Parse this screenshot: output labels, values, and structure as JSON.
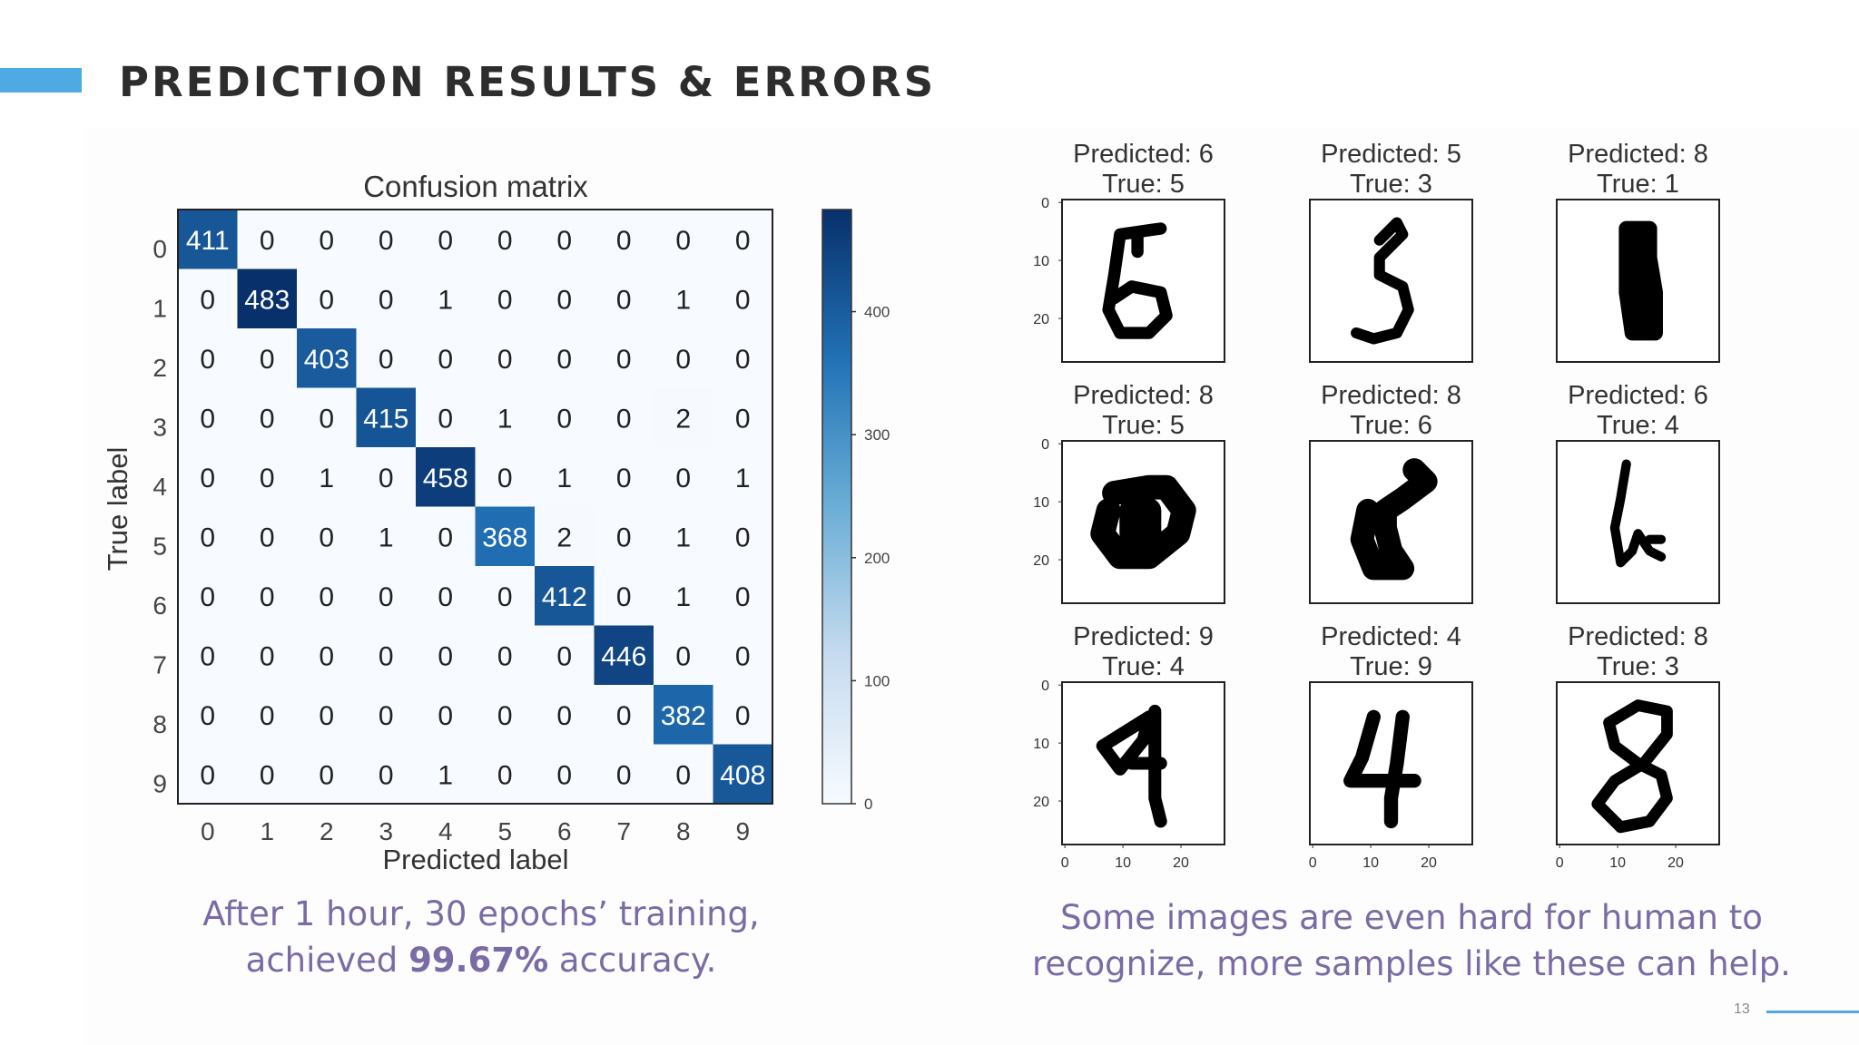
{
  "slide": {
    "title": "PREDICTION RESULTS & ERRORS",
    "page_number": "13",
    "caption_left": {
      "line1": "After 1 hour, 30 epochs’ training,",
      "line2_prefix": "achieved ",
      "line2_bold": "99.67%",
      "line2_suffix": " accuracy."
    },
    "caption_right": {
      "line1": "Some images are even hard for human to",
      "line2": "recognize, more samples like these can help."
    },
    "colors": {
      "accent": "#4fa9e3",
      "title": "#2d2d2d",
      "caption": "#7b6ba4",
      "cmap_low": "#f7fbff",
      "cmap_high": "#08306b"
    }
  },
  "chart_data": [
    {
      "type": "heatmap",
      "title": "Confusion matrix",
      "xlabel": "Predicted label",
      "ylabel": "True label",
      "x_ticks": [
        "0",
        "1",
        "2",
        "3",
        "4",
        "5",
        "6",
        "7",
        "8",
        "9"
      ],
      "y_ticks": [
        "0",
        "1",
        "2",
        "3",
        "4",
        "5",
        "6",
        "7",
        "8",
        "9"
      ],
      "matrix": [
        [
          411,
          0,
          0,
          0,
          0,
          0,
          0,
          0,
          0,
          0
        ],
        [
          0,
          483,
          0,
          0,
          1,
          0,
          0,
          0,
          1,
          0
        ],
        [
          0,
          0,
          403,
          0,
          0,
          0,
          0,
          0,
          0,
          0
        ],
        [
          0,
          0,
          0,
          415,
          0,
          1,
          0,
          0,
          2,
          0
        ],
        [
          0,
          0,
          1,
          0,
          458,
          0,
          1,
          0,
          0,
          1
        ],
        [
          0,
          0,
          0,
          1,
          0,
          368,
          2,
          0,
          1,
          0
        ],
        [
          0,
          0,
          0,
          0,
          0,
          0,
          412,
          0,
          1,
          0
        ],
        [
          0,
          0,
          0,
          0,
          0,
          0,
          0,
          446,
          0,
          0
        ],
        [
          0,
          0,
          0,
          0,
          0,
          0,
          0,
          0,
          382,
          0
        ],
        [
          0,
          0,
          0,
          0,
          1,
          0,
          0,
          0,
          0,
          408
        ]
      ],
      "colorbar": {
        "range": [
          0,
          483
        ],
        "ticks": [
          0,
          100,
          200,
          300,
          400
        ],
        "colormap": "Blues"
      },
      "grid": false
    },
    {
      "type": "image_grid",
      "title": "",
      "axis_ticks": [
        "0",
        "10",
        "20"
      ],
      "panels": [
        {
          "predicted_label": "Predicted: 6",
          "true_label": "True: 5",
          "predicted": 6,
          "true": 5
        },
        {
          "predicted_label": "Predicted: 5",
          "true_label": "True: 3",
          "predicted": 5,
          "true": 3
        },
        {
          "predicted_label": "Predicted: 8",
          "true_label": "True: 1",
          "predicted": 8,
          "true": 1
        },
        {
          "predicted_label": "Predicted: 8",
          "true_label": "True: 5",
          "predicted": 8,
          "true": 5
        },
        {
          "predicted_label": "Predicted: 8",
          "true_label": "True: 6",
          "predicted": 8,
          "true": 6
        },
        {
          "predicted_label": "Predicted: 6",
          "true_label": "True: 4",
          "predicted": 6,
          "true": 4
        },
        {
          "predicted_label": "Predicted: 9",
          "true_label": "True: 4",
          "predicted": 9,
          "true": 4
        },
        {
          "predicted_label": "Predicted: 4",
          "true_label": "True: 9",
          "predicted": 4,
          "true": 9
        },
        {
          "predicted_label": "Predicted: 8",
          "true_label": "True: 3",
          "predicted": 8,
          "true": 3
        }
      ]
    }
  ]
}
